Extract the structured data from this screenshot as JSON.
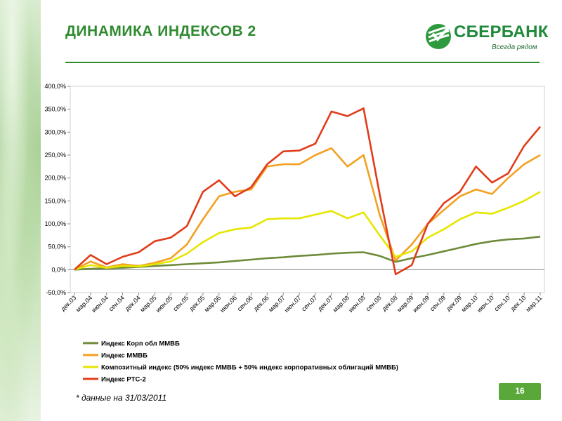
{
  "header": {
    "title": "ДИНАМИКА  ИНДЕКСОВ 2"
  },
  "logo": {
    "name": "СБЕРБАНК",
    "slogan": "Всегда рядом",
    "icon": "sberbank-logo-icon",
    "color": "#1f8a3a"
  },
  "footnote": "* данные   на   31/03/2011",
  "page_number": "16",
  "chart_data": {
    "type": "line",
    "title": "",
    "xlabel": "",
    "ylabel": "",
    "ylim": [
      -50,
      400
    ],
    "yticks": [
      -50,
      0,
      50,
      100,
      150,
      200,
      250,
      300,
      350,
      400
    ],
    "ytick_labels": [
      "-50,0%",
      "0,0%",
      "50,0%",
      "100,0%",
      "150,0%",
      "200,0%",
      "250,0%",
      "300,0%",
      "350,0%",
      "400,0%"
    ],
    "grid": false,
    "legend_position": "bottom",
    "categories": [
      "дек.03",
      "мар.04",
      "июн.04",
      "сен.04",
      "дек.04",
      "мар.05",
      "июн.05",
      "сен.05",
      "дек.05",
      "мар.06",
      "июн.06",
      "сен.06",
      "дек.06",
      "мар.07",
      "июн.07",
      "сен.07",
      "дек.07",
      "мар.08",
      "июн.08",
      "сен.08",
      "дек.08",
      "мар.09",
      "июн.09",
      "сен.09",
      "дек.09",
      "мар.10",
      "июн.10",
      "сен.10",
      "дек.10",
      "мар.11"
    ],
    "series": [
      {
        "name": "Индекс Корп обл ММВБ",
        "color": "#6e8a3a",
        "values": [
          0,
          2,
          3,
          4,
          6,
          8,
          10,
          12,
          14,
          16,
          19,
          22,
          25,
          27,
          30,
          32,
          35,
          37,
          38,
          30,
          17,
          25,
          32,
          40,
          48,
          56,
          62,
          66,
          68,
          72
        ]
      },
      {
        "name": "Индекс ММВБ",
        "color": "#f4a020",
        "values": [
          0,
          18,
          5,
          12,
          8,
          15,
          25,
          55,
          110,
          160,
          170,
          175,
          225,
          230,
          230,
          250,
          265,
          225,
          250,
          120,
          20,
          55,
          100,
          130,
          160,
          175,
          165,
          200,
          230,
          250
        ]
      },
      {
        "name": "Композитный индекс (50% индекс ММВБ + 50% индекс корпоративных облигаций ММВБ)",
        "color": "#e6e600",
        "values": [
          0,
          10,
          4,
          8,
          7,
          12,
          18,
          35,
          60,
          80,
          88,
          92,
          110,
          112,
          112,
          120,
          128,
          112,
          125,
          75,
          28,
          40,
          70,
          88,
          110,
          125,
          122,
          135,
          150,
          170
        ]
      },
      {
        "name": "Индекс РТС-2",
        "color": "#e03c1a",
        "values": [
          0,
          32,
          12,
          28,
          38,
          62,
          70,
          95,
          170,
          195,
          160,
          180,
          230,
          258,
          260,
          275,
          345,
          335,
          352,
          165,
          -10,
          10,
          100,
          145,
          170,
          225,
          190,
          210,
          270,
          312
        ]
      }
    ]
  }
}
